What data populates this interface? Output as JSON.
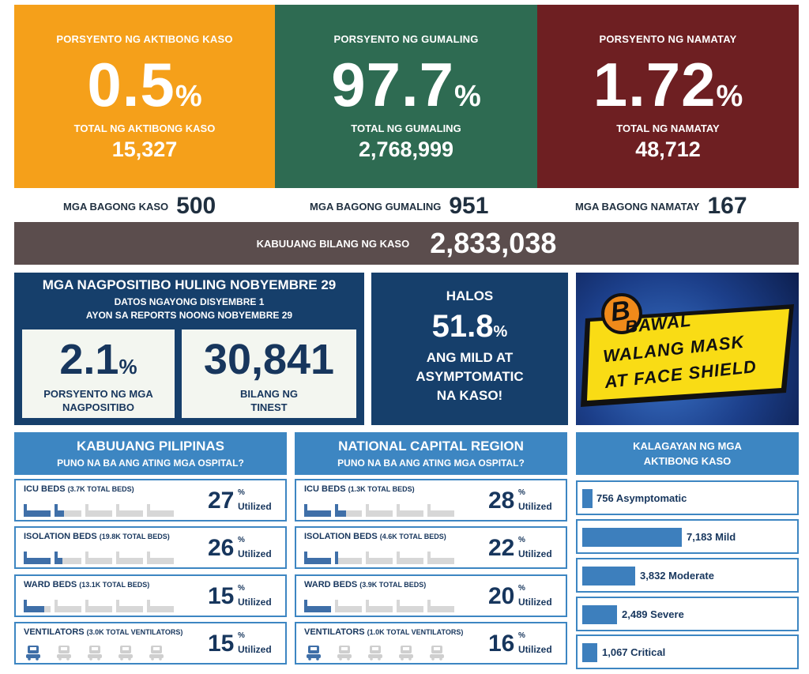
{
  "active": {
    "pct_label": "PORSYENTO NG AKTIBONG KASO",
    "pct_value": "0.5",
    "pct_symbol": "%",
    "total_label": "TOTAL NG AKTIBONG KASO",
    "total_value": "15,327",
    "color": "#f5a01a"
  },
  "recovered": {
    "pct_label": "PORSYENTO NG GUMALING",
    "pct_value": "97.7",
    "pct_symbol": "%",
    "total_label": "TOTAL NG GUMALING",
    "total_value": "2,768,999",
    "color": "#2e6b52"
  },
  "deaths": {
    "pct_label": "PORSYENTO NG NAMATAY",
    "pct_value": "1.72",
    "pct_symbol": "%",
    "total_label": "TOTAL NG NAMATAY",
    "total_value": "48,712",
    "color": "#6e1f22"
  },
  "new_counts": {
    "cases_label": "MGA BAGONG KASO",
    "cases_value": "500",
    "recovered_label": "MGA BAGONG GUMALING",
    "recovered_value": "951",
    "deaths_label": "MGA BAGONG NAMATAY",
    "deaths_value": "167"
  },
  "total_cases": {
    "label": "KABUUANG BILANG NG KASO",
    "value": "2,833,038",
    "color": "#5b4d4d"
  },
  "positivity": {
    "title": "MGA NAGPOSITIBO HULING NOBYEMBRE 29",
    "line1": "DATOS NGAYONG DISYEMBRE 1",
    "line2": "AYON SA REPORTS NOONG  NOBYEMBRE 29",
    "rate_value": "2.1",
    "rate_symbol": "%",
    "rate_label1": "PORSYENTO NG MGA",
    "rate_label2": "NAGPOSITIBO",
    "tested_value": "30,841",
    "tested_label1": "BILANG NG",
    "tested_label2": "TINEST"
  },
  "mild": {
    "line1": "HALOS",
    "value": "51.8",
    "symbol": "%",
    "line2": "ANG MILD AT",
    "line3": "ASYMPTOMATIC",
    "line4": "NA KASO!"
  },
  "banner": {
    "line1": "BAWAL",
    "line2": "WALANG MASK",
    "line3": "AT FACE SHIELD"
  },
  "ph": {
    "title": "KABUUANG PILIPINAS",
    "subtitle": "PUNO NA BA ANG ATING MGA OSPITAL?",
    "rows": [
      {
        "label": "ICU BEDS",
        "total": "(3.7K TOTAL BEDS)",
        "value": "27",
        "pct": "%",
        "word": "Utilized",
        "fraction": 0.27
      },
      {
        "label": "ISOLATION BEDS",
        "total": "(19.8K TOTAL BEDS)",
        "value": "26",
        "pct": "%",
        "word": "Utilized",
        "fraction": 0.26
      },
      {
        "label": "WARD BEDS",
        "total": "(13.1K TOTAL BEDS)",
        "value": "15",
        "pct": "%",
        "word": "Utilized",
        "fraction": 0.15
      },
      {
        "label": "VENTILATORS",
        "total": "(3.0K TOTAL VENTILATORS)",
        "value": "15",
        "pct": "%",
        "word": "Utilized",
        "fraction": 0.15
      }
    ]
  },
  "ncr": {
    "title": "NATIONAL CAPITAL REGION",
    "subtitle": "PUNO NA BA ANG ATING MGA OSPITAL?",
    "rows": [
      {
        "label": "ICU BEDS",
        "total": "(1.3K TOTAL BEDS)",
        "value": "28",
        "pct": "%",
        "word": "Utilized",
        "fraction": 0.28
      },
      {
        "label": "ISOLATION BEDS",
        "total": "(4.6K TOTAL BEDS)",
        "value": "22",
        "pct": "%",
        "word": "Utilized",
        "fraction": 0.22
      },
      {
        "label": "WARD BEDS",
        "total": "(3.9K TOTAL BEDS)",
        "value": "20",
        "pct": "%",
        "word": "Utilized",
        "fraction": 0.2
      },
      {
        "label": "VENTILATORS",
        "total": "(1.0K TOTAL VENTILATORS)",
        "value": "16",
        "pct": "%",
        "word": "Utilized",
        "fraction": 0.16
      }
    ]
  },
  "status": {
    "title1": "KALAGAYAN NG MGA",
    "title2": "AKTIBONG KASO",
    "items": [
      {
        "text": "756 Asymptomatic",
        "value": 756
      },
      {
        "text": "7,183 Mild",
        "value": 7183
      },
      {
        "text": "3,832 Moderate",
        "value": 3832
      },
      {
        "text": "2,489 Severe",
        "value": 2489
      },
      {
        "text": "1,067 Critical",
        "value": 1067
      }
    ]
  },
  "colors": {
    "navy": "#17365d",
    "blue": "#3d86c2",
    "dark_blue_panel": "#163f6b"
  }
}
